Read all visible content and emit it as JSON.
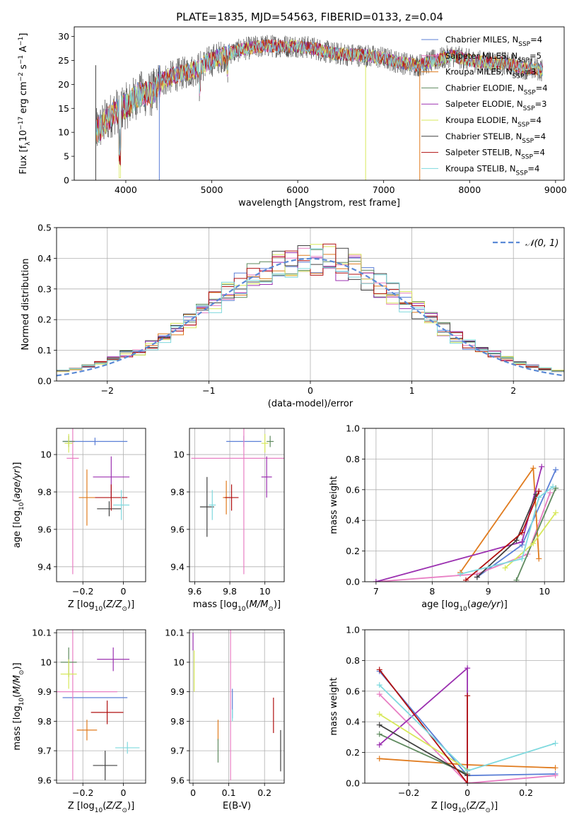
{
  "figure_title": "PLATE=1835, MJD=54563, FIBERID=0133, z=0.04",
  "models": [
    {
      "name": "Chabrier MILES",
      "n_ssp": "4",
      "color": "#5b7fd6"
    },
    {
      "name": "Salpeter MILES",
      "n_ssp": "5",
      "color": "#e87fc4"
    },
    {
      "name": "Kroupa MILES",
      "n_ssp": "3",
      "color": "#e07b1e"
    },
    {
      "name": "Chabrier ELODIE",
      "n_ssp": "4",
      "color": "#5f8a5f"
    },
    {
      "name": "Salpeter ELODIE",
      "n_ssp": "3",
      "color": "#9b30b0"
    },
    {
      "name": "Kroupa ELODIE",
      "n_ssp": "4",
      "color": "#d7e85a"
    },
    {
      "name": "Chabrier STELIB",
      "n_ssp": "4",
      "color": "#404040"
    },
    {
      "name": "Salpeter STELIB",
      "n_ssp": "4",
      "color": "#b01010"
    },
    {
      "name": "Kroupa STELIB",
      "n_ssp": "4",
      "color": "#7fd9de"
    }
  ],
  "chart_data": [
    {
      "id": "spectrum",
      "type": "line",
      "xlabel": "wavelength [Angstrom, rest frame]",
      "ylabel": "Flux [f_λ 10^-17 erg cm^-2 s^-1 A^-1]",
      "xlim": [
        3400,
        9100
      ],
      "ylim": [
        0,
        32
      ],
      "xticks": [
        4000,
        5000,
        6000,
        7000,
        8000,
        9000
      ],
      "yticks": [
        0,
        5,
        10,
        15,
        20,
        25,
        30
      ],
      "x_range_data": [
        3650,
        8850
      ],
      "continuum": [
        [
          3650,
          10
        ],
        [
          3750,
          12
        ],
        [
          3850,
          14
        ],
        [
          3950,
          15
        ],
        [
          4050,
          16
        ],
        [
          4150,
          18
        ],
        [
          4300,
          18
        ],
        [
          4450,
          21
        ],
        [
          4600,
          22
        ],
        [
          4800,
          23
        ],
        [
          5000,
          25
        ],
        [
          5200,
          26.5
        ],
        [
          5400,
          27.5
        ],
        [
          5600,
          28
        ],
        [
          5800,
          28
        ],
        [
          6000,
          28
        ],
        [
          6200,
          27.5
        ],
        [
          6400,
          26.5
        ],
        [
          6600,
          26.2
        ],
        [
          6800,
          26
        ],
        [
          7000,
          25.5
        ],
        [
          7200,
          24.5
        ],
        [
          7400,
          24
        ],
        [
          7600,
          25
        ],
        [
          7800,
          26
        ],
        [
          8000,
          25
        ],
        [
          8200,
          24.5
        ],
        [
          8400,
          24.5
        ],
        [
          8600,
          23.5
        ],
        [
          8850,
          23
        ]
      ],
      "grid": false,
      "legend_loc": "upper right"
    },
    {
      "id": "residuals",
      "type": "histogram",
      "xlabel": "(data-model)/error",
      "ylabel": "Normed distribution",
      "xlim": [
        -2.5,
        2.5
      ],
      "ylim": [
        0,
        0.5
      ],
      "xticks": [
        -2,
        -1,
        0,
        1,
        2
      ],
      "yticks": [
        0.0,
        0.1,
        0.2,
        0.3,
        0.4,
        0.5
      ],
      "bin_width": 0.125,
      "reference_curve": "N(0,1)",
      "grid": true,
      "legend_loc": "upper right"
    },
    {
      "id": "age_vs_Z",
      "type": "scatter",
      "xlabel": "Z [log10(Z/Z_sun)]",
      "ylabel": "age [log10(age/yr)]",
      "xlim": [
        -0.33,
        0.11
      ],
      "ylim": [
        9.32,
        10.14
      ],
      "xticks": [
        -0.2,
        0.0
      ],
      "yticks": [
        9.4,
        9.6,
        9.8,
        10.0
      ],
      "points": [
        {
          "model": 0,
          "x": -0.14,
          "y": 10.07,
          "xerr": 0.16,
          "yerr": 0.02
        },
        {
          "model": 1,
          "x": -0.25,
          "y": 9.98,
          "xerr": 0.03,
          "yerr": 0.62
        },
        {
          "model": 2,
          "x": -0.18,
          "y": 9.77,
          "xerr": 0.04,
          "yerr": 0.15
        },
        {
          "model": 3,
          "x": -0.27,
          "y": 10.07,
          "xerr": 0.03,
          "yerr": 0.03
        },
        {
          "model": 4,
          "x": -0.06,
          "y": 9.88,
          "xerr": 0.09,
          "yerr": 0.11
        },
        {
          "model": 5,
          "x": -0.27,
          "y": 10.06,
          "xerr": 0.02,
          "yerr": 0.05
        },
        {
          "model": 6,
          "x": -0.07,
          "y": 9.71,
          "xerr": 0.06,
          "yerr": 0.04
        },
        {
          "model": 7,
          "x": -0.06,
          "y": 9.77,
          "xerr": 0.08,
          "yerr": 0.07
        },
        {
          "model": 8,
          "x": -0.01,
          "y": 9.73,
          "xerr": 0.04,
          "yerr": 0.08
        }
      ],
      "grid": true
    },
    {
      "id": "age_vs_mass",
      "type": "scatter",
      "xlabel": "mass [log10(M/M_sun)]",
      "ylabel": "",
      "xlim": [
        9.57,
        10.11
      ],
      "ylim": [
        9.32,
        10.14
      ],
      "xticks": [
        9.6,
        9.8,
        10.0
      ],
      "yticks": [
        9.4,
        9.6,
        9.8,
        10.0
      ],
      "points": [
        {
          "model": 0,
          "x": 9.88,
          "y": 10.07,
          "xerr": 0.1,
          "yerr": 0.03
        },
        {
          "model": 1,
          "x": 9.88,
          "y": 9.98,
          "xerr": 0.3,
          "yerr": 0.62
        },
        {
          "model": 2,
          "x": 9.78,
          "y": 9.77,
          "xerr": 0.02,
          "yerr": 0.09
        },
        {
          "model": 3,
          "x": 10.03,
          "y": 10.07,
          "xerr": 0.02,
          "yerr": 0.03
        },
        {
          "model": 4,
          "x": 10.01,
          "y": 9.88,
          "xerr": 0.03,
          "yerr": 0.11
        },
        {
          "model": 5,
          "x": 10.0,
          "y": 10.06,
          "xerr": 0.02,
          "yerr": 0.05
        },
        {
          "model": 6,
          "x": 9.67,
          "y": 9.72,
          "xerr": 0.04,
          "yerr": 0.16
        },
        {
          "model": 7,
          "x": 9.81,
          "y": 9.77,
          "xerr": 0.04,
          "yerr": 0.07
        },
        {
          "model": 8,
          "x": 9.7,
          "y": 9.73,
          "xerr": 0.02,
          "yerr": 0.08
        }
      ],
      "grid": true
    },
    {
      "id": "massweight_vs_age",
      "type": "line",
      "xlabel": "age [log10(age/yr)]",
      "ylabel": "mass weight",
      "xlim": [
        6.8,
        10.35
      ],
      "ylim": [
        0,
        1
      ],
      "xticks": [
        7,
        8,
        9,
        10
      ],
      "yticks": [
        0.0,
        0.2,
        0.4,
        0.6,
        0.8,
        1.0
      ],
      "series": [
        {
          "model": 0,
          "x": [
            8.8,
            9.6,
            10.2
          ],
          "y": [
            0.03,
            0.24,
            0.73
          ]
        },
        {
          "model": 1,
          "x": [
            7.0,
            8.8,
            9.7,
            10.1
          ],
          "y": [
            0.0,
            0.05,
            0.18,
            0.58
          ]
        },
        {
          "model": 2,
          "x": [
            8.5,
            9.8,
            9.9
          ],
          "y": [
            0.06,
            0.74,
            0.15
          ]
        },
        {
          "model": 3,
          "x": [
            9.5,
            10.2
          ],
          "y": [
            0.01,
            0.61
          ]
        },
        {
          "model": 4,
          "x": [
            7.0,
            9.6,
            9.95
          ],
          "y": [
            0.0,
            0.26,
            0.75
          ]
        },
        {
          "model": 5,
          "x": [
            9.3,
            9.8,
            10.2
          ],
          "y": [
            0.09,
            0.25,
            0.45
          ]
        },
        {
          "model": 6,
          "x": [
            8.8,
            9.5,
            9.85
          ],
          "y": [
            0.03,
            0.27,
            0.57
          ]
        },
        {
          "model": 7,
          "x": [
            8.6,
            9.6,
            9.9
          ],
          "y": [
            0.01,
            0.32,
            0.59
          ]
        },
        {
          "model": 8,
          "x": [
            8.5,
            9.6,
            9.9,
            10.15
          ],
          "y": [
            0.05,
            0.15,
            0.55,
            0.62
          ]
        }
      ],
      "grid": true
    },
    {
      "id": "mass_vs_Z",
      "type": "scatter",
      "xlabel": "Z [log10(Z/Z_sun)]",
      "ylabel": "mass [log10(M/M_sun)]",
      "xlim": [
        -0.33,
        0.11
      ],
      "ylim": [
        9.59,
        10.11
      ],
      "xticks": [
        -0.2,
        0.0
      ],
      "yticks": [
        9.6,
        9.7,
        9.8,
        9.9,
        10.0,
        10.1
      ],
      "points": [
        {
          "model": 0,
          "x": -0.14,
          "y": 9.88,
          "xerr": 0.16,
          "yerr": 0.0
        },
        {
          "model": 1,
          "x": -0.25,
          "y": 9.9,
          "xerr": 0.22,
          "yerr": 0.3
        },
        {
          "model": 2,
          "x": -0.18,
          "y": 9.77,
          "xerr": 0.05,
          "yerr": 0.035
        },
        {
          "model": 3,
          "x": -0.27,
          "y": 10.0,
          "xerr": 0.04,
          "yerr": 0.05
        },
        {
          "model": 4,
          "x": -0.05,
          "y": 10.01,
          "xerr": 0.08,
          "yerr": 0.04
        },
        {
          "model": 5,
          "x": -0.27,
          "y": 9.96,
          "xerr": 0.04,
          "yerr": 0.05
        },
        {
          "model": 6,
          "x": -0.09,
          "y": 9.65,
          "xerr": 0.06,
          "yerr": 0.05
        },
        {
          "model": 7,
          "x": -0.08,
          "y": 9.83,
          "xerr": 0.08,
          "yerr": 0.04
        },
        {
          "model": 8,
          "x": 0.02,
          "y": 9.71,
          "xerr": 0.06,
          "yerr": 0.02
        }
      ],
      "grid": true
    },
    {
      "id": "mass_vs_EBV",
      "type": "scatter",
      "xlabel": "E(B-V)",
      "ylabel": "",
      "xlim": [
        -0.01,
        0.255
      ],
      "ylim": [
        9.59,
        10.11
      ],
      "xticks": [
        0.0,
        0.1,
        0.2
      ],
      "yticks": [
        9.6,
        9.7,
        9.8,
        9.9,
        10.0,
        10.1
      ],
      "points": [
        {
          "model": 0,
          "x": 0.11,
          "y": 9.86,
          "yerr": 0.05
        },
        {
          "model": 1,
          "x": 0.105,
          "y": 9.9,
          "yerr": 0.3
        },
        {
          "model": 2,
          "x": 0.07,
          "y": 9.77,
          "yerr": 0.035
        },
        {
          "model": 3,
          "x": 0.07,
          "y": 9.7,
          "yerr": 0.04
        },
        {
          "model": 4,
          "x": 0.0,
          "y": 10.07,
          "yerr": 0.03
        },
        {
          "model": 5,
          "x": 0.003,
          "y": 9.97,
          "yerr": 0.07
        },
        {
          "model": 6,
          "x": 0.245,
          "y": 9.7,
          "yerr": 0.07
        },
        {
          "model": 7,
          "x": 0.225,
          "y": 9.82,
          "yerr": 0.06
        },
        {
          "model": 8,
          "x": 0.11,
          "y": 9.82,
          "yerr": 0.02
        }
      ],
      "grid": true
    },
    {
      "id": "massweight_vs_Z",
      "type": "line",
      "xlabel": "Z [log10(Z/Z_sun)]",
      "ylabel": "mass weight",
      "xlim": [
        -0.35,
        0.33
      ],
      "ylim": [
        0,
        1
      ],
      "xticks": [
        -0.2,
        0.0,
        0.2
      ],
      "yticks": [
        0.0,
        0.2,
        0.4,
        0.6,
        0.8,
        1.0
      ],
      "series": [
        {
          "model": 0,
          "x": [
            -0.3,
            0.0,
            0.3
          ],
          "y": [
            0.73,
            0.05,
            0.06
          ]
        },
        {
          "model": 1,
          "x": [
            -0.3,
            0.0,
            0.3
          ],
          "y": [
            0.58,
            0.0,
            0.05
          ]
        },
        {
          "model": 2,
          "x": [
            -0.3,
            0.0,
            0.3
          ],
          "y": [
            0.16,
            0.12,
            0.1
          ]
        },
        {
          "model": 3,
          "x": [
            -0.3,
            0.0
          ],
          "y": [
            0.32,
            0.06
          ]
        },
        {
          "model": 4,
          "x": [
            -0.3,
            0.0,
            0.0
          ],
          "y": [
            0.25,
            0.75,
            0.0
          ]
        },
        {
          "model": 5,
          "x": [
            -0.3,
            0.0
          ],
          "y": [
            0.45,
            0.09
          ]
        },
        {
          "model": 6,
          "x": [
            -0.3,
            0.0
          ],
          "y": [
            0.38,
            0.05
          ]
        },
        {
          "model": 7,
          "x": [
            -0.3,
            0.0,
            0.0
          ],
          "y": [
            0.74,
            0.0,
            0.57
          ]
        },
        {
          "model": 8,
          "x": [
            -0.3,
            0.0,
            0.3
          ],
          "y": [
            0.64,
            0.08,
            0.26
          ]
        }
      ],
      "grid": true
    }
  ]
}
